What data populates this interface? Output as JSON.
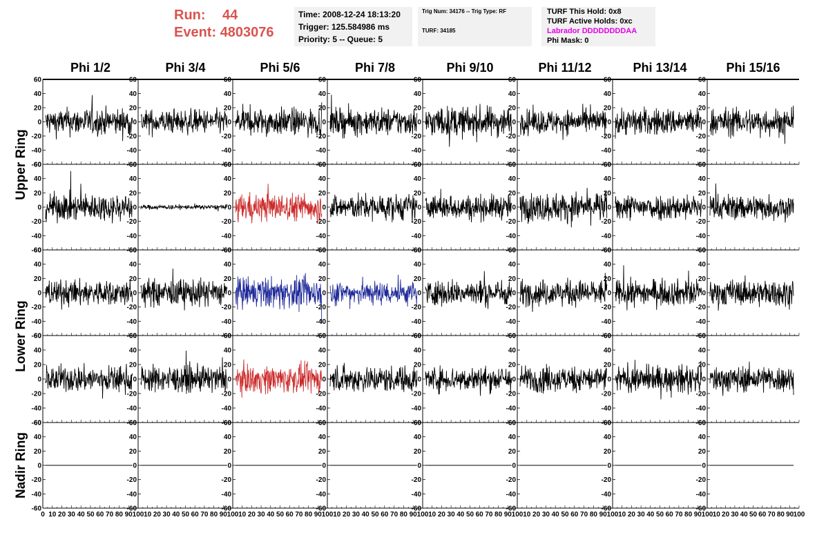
{
  "header": {
    "run_label": "Run:",
    "run_value": "44",
    "event_label": "Event:",
    "event_value": "4803076",
    "run_color": "#d9534f",
    "time": "Time: 2008-12-24 18:13:20",
    "trigger": "Trigger: 125.584986 ms",
    "priority": "Priority: 5 -- Queue: 5",
    "trig_num": "Trig Num: 34176 -- Trig Type: RF",
    "turf": "TURF: 34185",
    "turf_hold": "TURF This Hold: 0x8",
    "turf_active": "TURF Active Holds: 0xc",
    "labrador": "Labrador DDDDDDDDAA",
    "phi_mask": "Phi Mask: 0"
  },
  "chart_data": {
    "type": "line",
    "columns": [
      "Phi 1/2",
      "Phi 3/4",
      "Phi 5/6",
      "Phi 7/8",
      "Phi 9/10",
      "Phi 11/12",
      "Phi 13/14",
      "Phi 15/16"
    ],
    "ring_labels": [
      {
        "label": "Upper Ring",
        "rows": [
          0,
          1
        ]
      },
      {
        "label": "Lower Ring",
        "rows": [
          2,
          3
        ]
      },
      {
        "label": "Nadir Ring",
        "rows": [
          4
        ]
      }
    ],
    "ylim": [
      -60,
      60
    ],
    "yticks": [
      "60",
      "40",
      "20",
      "0",
      "-20",
      "-40",
      "-60"
    ],
    "xlim": [
      0,
      100
    ],
    "xticks": [
      "0",
      "10",
      "20",
      "30",
      "40",
      "50",
      "60",
      "70",
      "80",
      "90",
      "100"
    ],
    "colors": {
      "normal": "#000000",
      "triggered": "#cc2a2a",
      "lower_triggered": "#1f2a99"
    },
    "trace_amplitude": [
      [
        18,
        16,
        18,
        18,
        20,
        16,
        18,
        18
      ],
      [
        18,
        3,
        18,
        17,
        16,
        19,
        17,
        17
      ],
      [
        17,
        18,
        20,
        16,
        17,
        17,
        17,
        17
      ],
      [
        17,
        17,
        18,
        17,
        16,
        17,
        17,
        17
      ],
      [
        0,
        0,
        0,
        0,
        0,
        0,
        0,
        0
      ]
    ],
    "trace_color": [
      [
        "normal",
        "normal",
        "normal",
        "normal",
        "normal",
        "normal",
        "normal",
        "normal"
      ],
      [
        "normal",
        "normal",
        "triggered",
        "normal",
        "normal",
        "normal",
        "normal",
        "normal"
      ],
      [
        "normal",
        "normal",
        "lower_triggered",
        "lower_triggered",
        "normal",
        "normal",
        "normal",
        "normal"
      ],
      [
        "normal",
        "normal",
        "triggered",
        "normal",
        "normal",
        "normal",
        "normal",
        "normal"
      ],
      [
        "normal",
        "normal",
        "normal",
        "normal",
        "normal",
        "normal",
        "normal",
        "normal"
      ]
    ]
  }
}
